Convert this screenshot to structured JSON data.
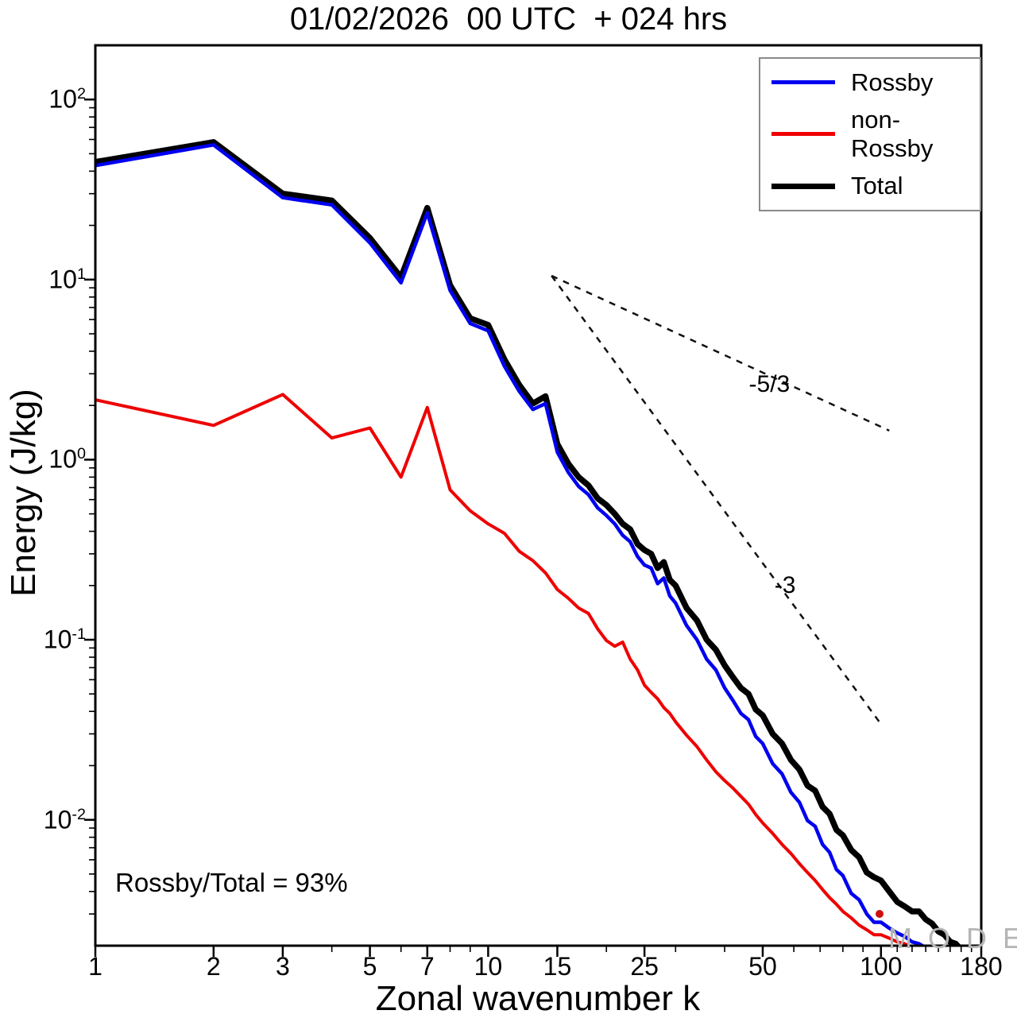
{
  "annotation": "Rossby/Total = 93%",
  "watermark": {
    "text": "M O D E S",
    "sup": "©"
  },
  "colors": {
    "rossby": "#0000f0",
    "non_rossby": "#ee0000",
    "total": "#000000",
    "reference_dash": "#111111",
    "watermark": "#b5b5b5",
    "watermark_dot": "#d01010"
  },
  "chart_data": {
    "type": "line",
    "title": "01/02/2026  00 UTC  + 024 hrs",
    "xlabel": "Zonal wavenumber k",
    "ylabel": "Energy (J/kg)",
    "x_scale": "log",
    "y_scale": "log",
    "xlim": [
      1,
      180
    ],
    "ylim": [
      0.002,
      200
    ],
    "x_ticks": [
      1,
      2,
      3,
      5,
      7,
      10,
      15,
      25,
      50,
      100,
      180
    ],
    "x_minor_ticks": [
      4,
      6,
      8,
      9,
      20,
      30,
      40,
      60,
      70,
      80,
      90,
      110,
      120,
      130,
      140,
      150,
      160,
      170
    ],
    "y_tick_exponents": [
      2,
      1,
      0,
      -1,
      -2
    ],
    "grid": false,
    "legend_position": "top-right",
    "series": [
      {
        "name": "Rossby",
        "color": "#0000f0",
        "width": 4.5,
        "points": [
          [
            1,
            43
          ],
          [
            2,
            56
          ],
          [
            3,
            28.5
          ],
          [
            4,
            26
          ],
          [
            5,
            16
          ],
          [
            6,
            9.6
          ],
          [
            7,
            23.5
          ],
          [
            8,
            8.7
          ],
          [
            9,
            5.7
          ],
          [
            10,
            5.2
          ],
          [
            11,
            3.3
          ],
          [
            12,
            2.4
          ],
          [
            13,
            1.9
          ],
          [
            14,
            2.05
          ],
          [
            15,
            1.1
          ],
          [
            16,
            0.85
          ],
          [
            17,
            0.71
          ],
          [
            18,
            0.64
          ],
          [
            19,
            0.54
          ],
          [
            20,
            0.49
          ],
          [
            21,
            0.44
          ],
          [
            22,
            0.38
          ],
          [
            23,
            0.35
          ],
          [
            24,
            0.29
          ],
          [
            25,
            0.26
          ],
          [
            26,
            0.25
          ],
          [
            27,
            0.205
          ],
          [
            28,
            0.22
          ],
          [
            29,
            0.175
          ],
          [
            30,
            0.16
          ],
          [
            32,
            0.12
          ],
          [
            34,
            0.1
          ],
          [
            36,
            0.078
          ],
          [
            38,
            0.068
          ],
          [
            40,
            0.054
          ],
          [
            42,
            0.046
          ],
          [
            44,
            0.039
          ],
          [
            46,
            0.036
          ],
          [
            48,
            0.029
          ],
          [
            50,
            0.0265
          ],
          [
            53,
            0.0205
          ],
          [
            56,
            0.018
          ],
          [
            59,
            0.0142
          ],
          [
            62,
            0.0125
          ],
          [
            65,
            0.0099
          ],
          [
            68,
            0.0092
          ],
          [
            71,
            0.0073
          ],
          [
            74,
            0.0066
          ],
          [
            77,
            0.0053
          ],
          [
            80,
            0.0049
          ],
          [
            84,
            0.0039
          ],
          [
            88,
            0.0036
          ],
          [
            92,
            0.003
          ],
          [
            96,
            0.0027
          ],
          [
            100,
            0.0027
          ],
          [
            105,
            0.0025
          ],
          [
            110,
            0.00235
          ],
          [
            115,
            0.00225
          ],
          [
            120,
            0.0021
          ],
          [
            125,
            0.00205
          ],
          [
            130,
            0.00195
          ],
          [
            135,
            0.0018
          ]
        ]
      },
      {
        "name": "non-Rossby",
        "color": "#ee0000",
        "width": 4,
        "points": [
          [
            1,
            2.15
          ],
          [
            2,
            1.55
          ],
          [
            3,
            2.3
          ],
          [
            4,
            1.32
          ],
          [
            5,
            1.5
          ],
          [
            6,
            0.8
          ],
          [
            7,
            1.95
          ],
          [
            8,
            0.68
          ],
          [
            9,
            0.52
          ],
          [
            10,
            0.44
          ],
          [
            11,
            0.39
          ],
          [
            12,
            0.31
          ],
          [
            13,
            0.275
          ],
          [
            14,
            0.235
          ],
          [
            15,
            0.19
          ],
          [
            16,
            0.17
          ],
          [
            17,
            0.15
          ],
          [
            18,
            0.14
          ],
          [
            19,
            0.115
          ],
          [
            20,
            0.099
          ],
          [
            21,
            0.092
          ],
          [
            22,
            0.097
          ],
          [
            23,
            0.078
          ],
          [
            24,
            0.068
          ],
          [
            25,
            0.056
          ],
          [
            26,
            0.051
          ],
          [
            27,
            0.047
          ],
          [
            28,
            0.042
          ],
          [
            29,
            0.039
          ],
          [
            30,
            0.035
          ],
          [
            32,
            0.0295
          ],
          [
            34,
            0.0255
          ],
          [
            36,
            0.0215
          ],
          [
            38,
            0.0185
          ],
          [
            40,
            0.0165
          ],
          [
            42,
            0.015
          ],
          [
            44,
            0.0135
          ],
          [
            46,
            0.0122
          ],
          [
            48,
            0.0107
          ],
          [
            50,
            0.0096
          ],
          [
            53,
            0.0084
          ],
          [
            56,
            0.0073
          ],
          [
            59,
            0.0065
          ],
          [
            62,
            0.0057
          ],
          [
            65,
            0.0051
          ],
          [
            68,
            0.0046
          ],
          [
            71,
            0.0041
          ],
          [
            74,
            0.0037
          ],
          [
            77,
            0.0034
          ],
          [
            80,
            0.0031
          ],
          [
            84,
            0.00285
          ],
          [
            88,
            0.0026
          ],
          [
            92,
            0.00245
          ],
          [
            96,
            0.0023
          ],
          [
            100,
            0.0023
          ],
          [
            105,
            0.0022
          ],
          [
            110,
            0.0021
          ],
          [
            115,
            0.00205
          ],
          [
            120,
            0.00195
          ],
          [
            125,
            0.00185
          ]
        ]
      },
      {
        "name": "Total",
        "color": "#000000",
        "width": 7.5,
        "points": [
          [
            1,
            45
          ],
          [
            2,
            58
          ],
          [
            3,
            30
          ],
          [
            4,
            27.5
          ],
          [
            5,
            17
          ],
          [
            6,
            10.3
          ],
          [
            7,
            25
          ],
          [
            8,
            9.3
          ],
          [
            9,
            6.1
          ],
          [
            10,
            5.6
          ],
          [
            11,
            3.6
          ],
          [
            12,
            2.6
          ],
          [
            13,
            2.05
          ],
          [
            14,
            2.25
          ],
          [
            15,
            1.22
          ],
          [
            16,
            0.95
          ],
          [
            17,
            0.8
          ],
          [
            18,
            0.72
          ],
          [
            19,
            0.61
          ],
          [
            20,
            0.56
          ],
          [
            21,
            0.5
          ],
          [
            22,
            0.44
          ],
          [
            23,
            0.41
          ],
          [
            24,
            0.34
          ],
          [
            25,
            0.315
          ],
          [
            26,
            0.3
          ],
          [
            27,
            0.25
          ],
          [
            28,
            0.27
          ],
          [
            29,
            0.215
          ],
          [
            30,
            0.2
          ],
          [
            32,
            0.15
          ],
          [
            34,
            0.128
          ],
          [
            36,
            0.1
          ],
          [
            38,
            0.088
          ],
          [
            40,
            0.072
          ],
          [
            42,
            0.062
          ],
          [
            44,
            0.054
          ],
          [
            46,
            0.05
          ],
          [
            48,
            0.041
          ],
          [
            50,
            0.038
          ],
          [
            53,
            0.03
          ],
          [
            56,
            0.0265
          ],
          [
            59,
            0.0215
          ],
          [
            62,
            0.019
          ],
          [
            65,
            0.0155
          ],
          [
            68,
            0.0145
          ],
          [
            71,
            0.0118
          ],
          [
            74,
            0.0108
          ],
          [
            77,
            0.0088
          ],
          [
            80,
            0.0082
          ],
          [
            84,
            0.0068
          ],
          [
            88,
            0.0062
          ],
          [
            92,
            0.0051
          ],
          [
            96,
            0.0048
          ],
          [
            100,
            0.0046
          ],
          [
            105,
            0.004
          ],
          [
            110,
            0.0035
          ],
          [
            115,
            0.0033
          ],
          [
            120,
            0.0031
          ],
          [
            125,
            0.0031
          ],
          [
            130,
            0.0028
          ],
          [
            135,
            0.00265
          ],
          [
            140,
            0.0024
          ],
          [
            145,
            0.0023
          ],
          [
            150,
            0.0021
          ],
          [
            155,
            0.00205
          ],
          [
            160,
            0.0019
          ],
          [
            165,
            0.0017
          ]
        ]
      }
    ],
    "reference_lines": [
      {
        "label": "-5/3",
        "from": [
          14.5,
          10.5
        ],
        "to": [
          105,
          1.45
        ],
        "label_pos": [
          52,
          2.6
        ]
      },
      {
        "label": "-3",
        "from": [
          14.5,
          10.5
        ],
        "to": [
          100,
          0.034
        ],
        "label_pos": [
          57,
          0.2
        ]
      }
    ]
  }
}
